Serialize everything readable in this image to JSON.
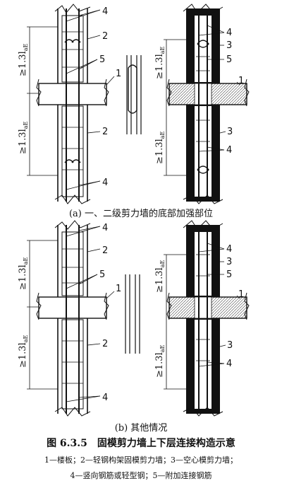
{
  "labels": {
    "floor_slab": "1",
    "light_steel_frame_wall": "2",
    "hollow_mold_wall": "3",
    "vertical_bar": "4",
    "additional_bar": "5"
  },
  "dimension": {
    "text": "≥1.3l",
    "subscript": "aE"
  },
  "captions": {
    "a": "(a) 一、二级剪力墙的底部加强部位",
    "b": "(b) 其他情况"
  },
  "title": "图 6.3.5　固模剪力墙上下层连接构造示意",
  "legend": {
    "line1": "1—楼板；2—轻钢构架固模剪力墙；3—空心模剪力墙；",
    "line2": "4—竖向钢筋或轻型钢；5—附加连接钢筋"
  }
}
